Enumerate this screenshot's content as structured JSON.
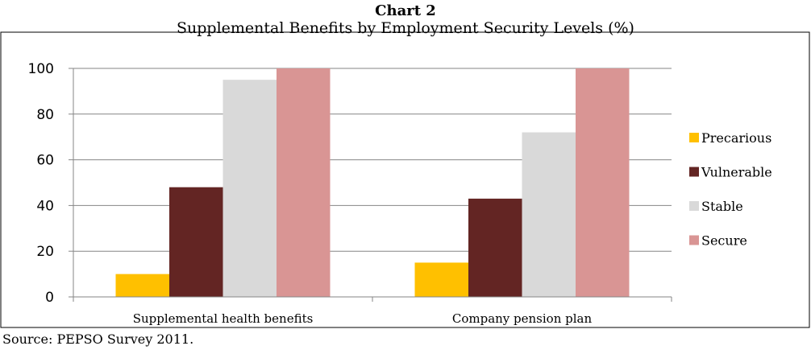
{
  "header": {
    "title": "Chart 2",
    "subtitle": "Supplemental Benefits by Employment Security Levels (%)"
  },
  "footer": {
    "source": "Source: PEPSO Survey 2011."
  },
  "chart_data": {
    "type": "bar",
    "title": "Chart 2",
    "subtitle": "Supplemental Benefits by Employment Security Levels (%)",
    "categories": [
      "Supplemental health benefits",
      "Company pension plan"
    ],
    "series": [
      {
        "name": "Precarious",
        "values": [
          10,
          15
        ],
        "color": "#FFC000"
      },
      {
        "name": "Vulnerable",
        "values": [
          48,
          43
        ],
        "color": "#632523"
      },
      {
        "name": "Stable",
        "values": [
          95,
          72
        ],
        "color": "#D9D9D9"
      },
      {
        "name": "Secure",
        "values": [
          100,
          100
        ],
        "color": "#D99594"
      }
    ],
    "ylim": [
      0,
      100
    ],
    "yticks": [
      0,
      20,
      40,
      60,
      80,
      100
    ],
    "xlabel": "",
    "ylabel": "",
    "grid": true,
    "legend_position": "right"
  }
}
